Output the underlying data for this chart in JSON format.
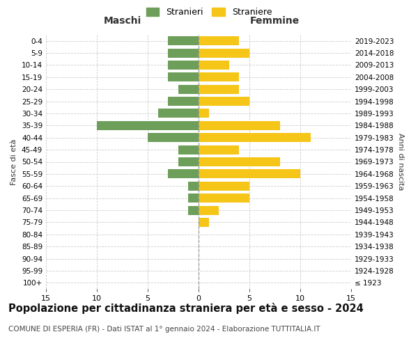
{
  "age_groups": [
    "100+",
    "95-99",
    "90-94",
    "85-89",
    "80-84",
    "75-79",
    "70-74",
    "65-69",
    "60-64",
    "55-59",
    "50-54",
    "45-49",
    "40-44",
    "35-39",
    "30-34",
    "25-29",
    "20-24",
    "15-19",
    "10-14",
    "5-9",
    "0-4"
  ],
  "birth_years": [
    "≤ 1923",
    "1924-1928",
    "1929-1933",
    "1934-1938",
    "1939-1943",
    "1944-1948",
    "1949-1953",
    "1954-1958",
    "1959-1963",
    "1964-1968",
    "1969-1973",
    "1974-1978",
    "1979-1983",
    "1984-1988",
    "1989-1993",
    "1994-1998",
    "1999-2003",
    "2004-2008",
    "2009-2013",
    "2014-2018",
    "2019-2023"
  ],
  "males": [
    0,
    0,
    0,
    0,
    0,
    0,
    1,
    1,
    1,
    3,
    2,
    2,
    5,
    10,
    4,
    3,
    2,
    3,
    3,
    3,
    3
  ],
  "females": [
    0,
    0,
    0,
    0,
    0,
    1,
    2,
    5,
    5,
    10,
    8,
    4,
    11,
    8,
    1,
    5,
    4,
    4,
    3,
    5,
    4
  ],
  "male_color": "#6d9e5a",
  "female_color": "#f5c518",
  "legend_male": "Stranieri",
  "legend_female": "Straniere",
  "left_label": "Maschi",
  "right_label": "Femmine",
  "ylabel_left": "Fasce di età",
  "ylabel_right": "Anni di nascita",
  "xlim": 15,
  "title": "Popolazione per cittadinanza straniera per età e sesso - 2024",
  "subtitle": "COMUNE DI ESPERIA (FR) - Dati ISTAT al 1° gennaio 2024 - Elaborazione TUTTITALIA.IT",
  "title_fontsize": 10.5,
  "subtitle_fontsize": 7.5,
  "bar_height": 0.75,
  "grid_color": "#cccccc",
  "background_color": "#ffffff",
  "center_line_color": "#999999"
}
